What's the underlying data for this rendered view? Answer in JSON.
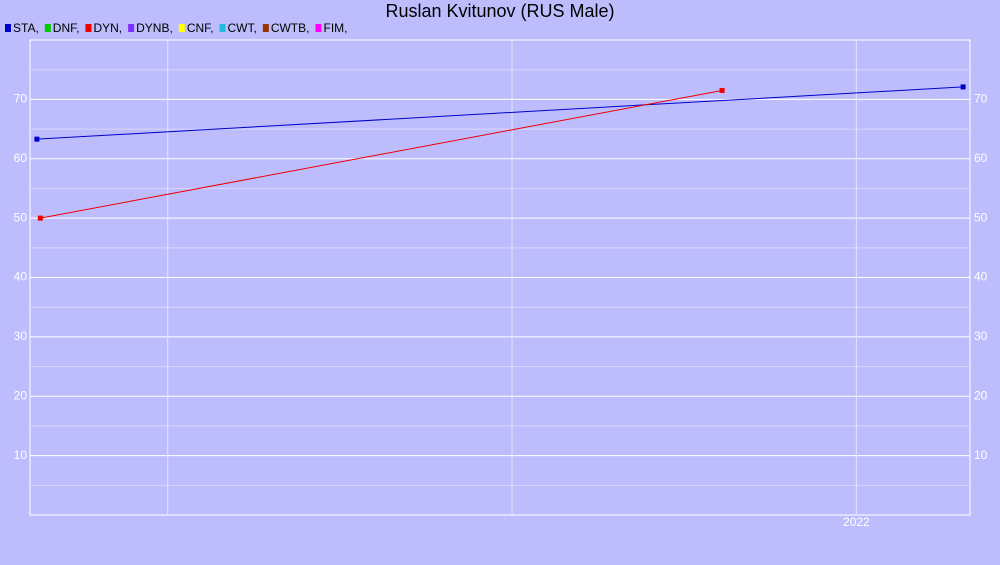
{
  "chart_data": {
    "type": "line",
    "title": "Ruslan Kvitunov (RUS Male)",
    "series": [
      {
        "name": "STA,",
        "color": "#0000cc",
        "x": [
          2019.62,
          2022.31
        ],
        "values": [
          63.3,
          72.1
        ]
      },
      {
        "name": "DNF,",
        "color": "#00cc00",
        "x": [],
        "values": []
      },
      {
        "name": "DYN,",
        "color": "#ee0000",
        "x": [
          2019.63,
          2021.61
        ],
        "values": [
          50,
          71.5
        ]
      },
      {
        "name": "DYNB,",
        "color": "#7f2fff",
        "x": [],
        "values": []
      },
      {
        "name": "CNF,",
        "color": "#ffff00",
        "x": [],
        "values": []
      },
      {
        "name": "CWT,",
        "color": "#22bbdd",
        "x": [],
        "values": []
      },
      {
        "name": "CWTB,",
        "color": "#993300",
        "x": [],
        "values": []
      },
      {
        "name": "FIM,",
        "color": "#ff00ff",
        "x": [],
        "values": []
      }
    ],
    "xlim": [
      2019.6,
      2022.33
    ],
    "xticks": [
      {
        "value": 2020,
        "label": null
      },
      {
        "value": 2021,
        "label": null
      },
      2022
    ],
    "ylim": [
      0,
      80
    ],
    "yticks": [
      10,
      20,
      30,
      40,
      50,
      60,
      70
    ],
    "minor_yticks": [
      5,
      15,
      25,
      35,
      45,
      55,
      65,
      75
    ],
    "grid": true
  }
}
